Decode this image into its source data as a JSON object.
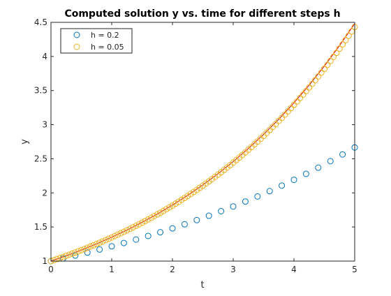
{
  "chart_data": {
    "type": "scatter",
    "title": "Computed solution y vs. time for different steps h",
    "xlabel": "t",
    "ylabel": "y",
    "xlim": [
      0,
      5
    ],
    "ylim": [
      1,
      4.5
    ],
    "grid": false,
    "legend_placement": "top-left",
    "x_ticks": [
      0,
      1,
      2,
      3,
      4,
      5
    ],
    "x_tick_labels": [
      "0",
      "1",
      "2",
      "3",
      "4",
      "5"
    ],
    "y_ticks": [
      1,
      1.5,
      2,
      2.5,
      3,
      3.5,
      4,
      4.5
    ],
    "y_tick_labels": [
      "1",
      "1.5",
      "2",
      "2.5",
      "3",
      "3.5",
      "4",
      "4.5"
    ],
    "series": [
      {
        "name": "h = 0.2",
        "marker": "circle",
        "color": "#0072BD",
        "step": 0.2,
        "x": [
          0,
          0.2,
          0.4,
          0.6,
          0.8,
          1.0,
          1.2,
          1.4,
          1.6,
          1.8,
          2.0,
          2.2,
          2.4,
          2.6,
          2.8,
          3.0,
          3.2,
          3.4,
          3.6,
          3.8,
          4.0,
          4.2,
          4.4,
          4.6,
          4.8,
          5.0
        ],
        "y": [
          1.0,
          1.04,
          1.0816,
          1.1249,
          1.1699,
          1.2167,
          1.2653,
          1.3159,
          1.3686,
          1.4233,
          1.4802,
          1.5395,
          1.601,
          1.6651,
          1.7317,
          1.8009,
          1.873,
          1.9479,
          2.0258,
          2.1068,
          2.1911,
          2.2788,
          2.3699,
          2.4647,
          2.5633,
          2.6658
        ]
      },
      {
        "name": "h = 0.05",
        "marker": "circle",
        "color": "#EDB120",
        "step": 0.05,
        "x": [
          0,
          0.05,
          0.1,
          0.15,
          0.2,
          0.25,
          0.3,
          0.35,
          0.4,
          0.45,
          0.5,
          0.55,
          0.6,
          0.65,
          0.7,
          0.75,
          0.8,
          0.85,
          0.9,
          0.95,
          1.0,
          1.05,
          1.1,
          1.15,
          1.2,
          1.25,
          1.3,
          1.35,
          1.4,
          1.45,
          1.5,
          1.55,
          1.6,
          1.65,
          1.7,
          1.75,
          1.8,
          1.85,
          1.9,
          1.95,
          2.0,
          2.05,
          2.1,
          2.15,
          2.2,
          2.25,
          2.3,
          2.35,
          2.4,
          2.45,
          2.5,
          2.55,
          2.6,
          2.65,
          2.7,
          2.75,
          2.8,
          2.85,
          2.9,
          2.95,
          3.0,
          3.05,
          3.1,
          3.15,
          3.2,
          3.25,
          3.3,
          3.35,
          3.4,
          3.45,
          3.5,
          3.55,
          3.6,
          3.65,
          3.7,
          3.75,
          3.8,
          3.85,
          3.9,
          3.95,
          4.0,
          4.05,
          4.1,
          4.15,
          4.2,
          4.25,
          4.3,
          4.35,
          4.4,
          4.45,
          4.5,
          4.55,
          4.6,
          4.65,
          4.7,
          4.75,
          4.8,
          4.85,
          4.9,
          4.95,
          5.0
        ],
        "y": [
          1.0,
          1.015,
          1.0302,
          1.0457,
          1.0614,
          1.0773,
          1.0934,
          1.1098,
          1.1265,
          1.1434,
          1.1605,
          1.1779,
          1.1956,
          1.2136,
          1.2318,
          1.2502,
          1.269,
          1.288,
          1.3073,
          1.3269,
          1.3469,
          1.3671,
          1.3876,
          1.4084,
          1.4295,
          1.451,
          1.4727,
          1.4948,
          1.5172,
          1.54,
          1.5631,
          1.5865,
          1.6103,
          1.6345,
          1.659,
          1.6839,
          1.7091,
          1.7348,
          1.7608,
          1.7872,
          1.814,
          1.8412,
          1.8688,
          1.8969,
          1.9253,
          1.9542,
          1.9835,
          2.0133,
          2.0435,
          2.0741,
          2.1052,
          2.1368,
          2.1689,
          2.2014,
          2.2344,
          2.2679,
          2.302,
          2.3365,
          2.3715,
          2.4071,
          2.4432,
          2.4799,
          2.5171,
          2.5548,
          2.5931,
          2.632,
          2.6715,
          2.7116,
          2.7523,
          2.7936,
          2.8355,
          2.878,
          2.9212,
          2.965,
          3.0095,
          3.0546,
          3.1004,
          3.1469,
          3.1941,
          3.242,
          3.2907,
          3.34,
          3.3901,
          3.441,
          3.4926,
          3.545,
          3.5981,
          3.6521,
          3.7069,
          3.7625,
          3.8189,
          3.8762,
          3.9344,
          3.9934,
          4.0533,
          4.1141,
          4.1758,
          4.2384,
          4.302,
          4.3665,
          4.432
        ]
      }
    ],
    "reference_curve": {
      "color": "#D00000",
      "x": [
        0,
        0.25,
        0.5,
        0.75,
        1.0,
        1.25,
        1.5,
        1.75,
        2.0,
        2.25,
        2.5,
        2.75,
        3.0,
        3.25,
        3.5,
        3.75,
        4.0,
        4.25,
        4.5,
        4.75,
        5.0
      ],
      "y": [
        1.0,
        1.0779,
        1.1618,
        1.2523,
        1.3499,
        1.455,
        1.5683,
        1.6905,
        1.8221,
        1.964,
        2.117,
        2.2819,
        2.4596,
        2.6512,
        2.8577,
        3.0802,
        3.3201,
        3.5787,
        3.8574,
        4.1579,
        4.4817
      ]
    }
  }
}
